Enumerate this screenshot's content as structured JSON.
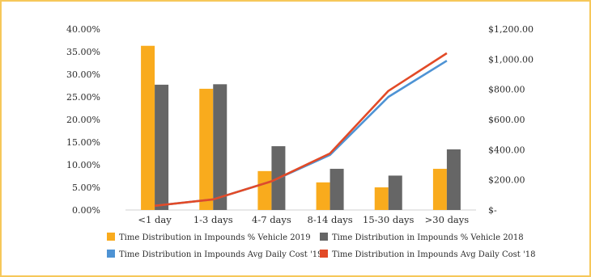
{
  "chart_data": {
    "type": "bar",
    "categories": [
      "<1 day",
      "1-3 days",
      "4-7 days",
      "8-14 days",
      "15-30 days",
      ">30 days"
    ],
    "y_left": {
      "ylim": [
        0,
        40
      ],
      "ticks": [
        0,
        5,
        10,
        15,
        20,
        25,
        30,
        35,
        40
      ],
      "tick_labels": [
        "0.00%",
        "5.00%",
        "10.00%",
        "15.00%",
        "20.00%",
        "25.00%",
        "30.00%",
        "35.00%",
        "40.00%"
      ]
    },
    "y_right": {
      "ylim": [
        0,
        1200
      ],
      "ticks": [
        0,
        200,
        400,
        600,
        800,
        1000,
        1200
      ],
      "tick_labels": [
        "$-",
        "$200.00",
        "$400.00",
        "$600.00",
        "$800.00",
        "$1,000.00",
        "$1,200.00"
      ]
    },
    "bar_series": [
      {
        "name": "Time Distribution in Impounds % Vehicle 2019",
        "color": "#f9ab1d",
        "values": [
          36.3,
          26.8,
          8.6,
          6.1,
          5.0,
          9.1
        ]
      },
      {
        "name": "Time Distribution in Impounds % Vehicle 2018",
        "color": "#666666",
        "values": [
          27.7,
          27.8,
          14.1,
          9.1,
          7.6,
          13.4
        ]
      }
    ],
    "line_series": [
      {
        "name": "Time Distribution in Impounds Avg Daily Cost '19",
        "color": "#4e93d4",
        "values": [
          28,
          70,
          190,
          365,
          750,
          990
        ]
      },
      {
        "name": "Time Distribution in Impounds Avg Daily Cost '18",
        "color": "#e24a27",
        "values": [
          28,
          70,
          190,
          375,
          790,
          1040
        ]
      }
    ],
    "grid": false,
    "legend": "bottom"
  }
}
